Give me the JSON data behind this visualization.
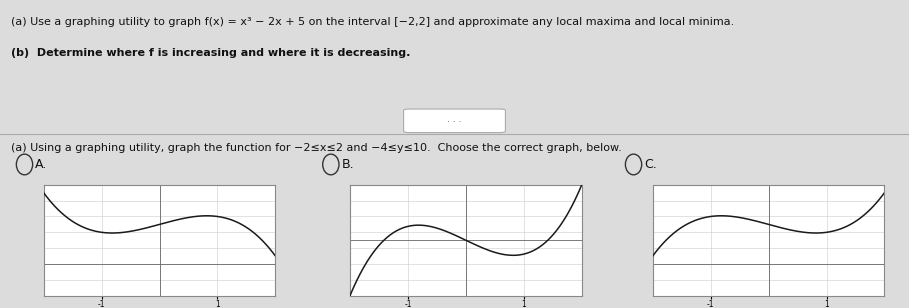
{
  "title_line1": "(a) Use a graphing utility to graph f(x) = x³ − 2x + 5 on the interval [−2,2] and approximate any local maxima and local minima.",
  "title_line2": "(b)  Determine where f is increasing and where it is decreasing.",
  "dots_text": "•••",
  "question_text": "(a) Using a graphing utility, graph the function for −2≤x≤2 and −4≤y≤10.  Choose the correct graph, below.",
  "labels": [
    "A.",
    "B.",
    "C."
  ],
  "xmin": -2,
  "xmax": 2,
  "ymin": -4,
  "ymax": 10,
  "bg_color": "#dcdcdc",
  "plot_bg": "#ffffff",
  "line_color": "#1a1a1a",
  "spine_color": "#888888",
  "grid_color": "#cccccc",
  "text_color": "#111111",
  "divider_color": "#aaaaaa",
  "radio_color": "#333333",
  "font_size_title": 8.0,
  "font_size_question": 8.0,
  "font_size_label": 9.0,
  "font_size_tick": 5.5
}
